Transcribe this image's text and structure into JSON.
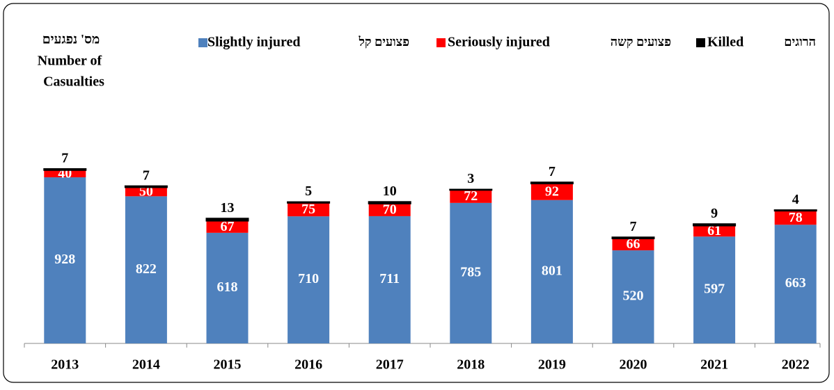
{
  "chart_data": {
    "type": "stacked_bar",
    "ylabel_lines": [
      "מס' נפגעים",
      "Number of",
      "Casualties"
    ],
    "categories": [
      "2013",
      "2014",
      "2015",
      "2016",
      "2017",
      "2018",
      "2019",
      "2020",
      "2021",
      "2022"
    ],
    "series": [
      {
        "name": "Slightly injured",
        "name_he": "פצועים קל",
        "color": "#4f81bd",
        "label_color": "#ffffff",
        "values": [
          928,
          822,
          618,
          710,
          711,
          785,
          801,
          520,
          597,
          663
        ]
      },
      {
        "name": "Seriously injured",
        "name_he": "פצועים קשה",
        "color": "#ff0000",
        "label_color": "#ffffff",
        "values": [
          40,
          50,
          67,
          75,
          70,
          72,
          92,
          66,
          61,
          78
        ]
      },
      {
        "name": "Killed",
        "name_he": "הרוגים",
        "color": "#000000",
        "label_color": "#000000",
        "values": [
          7,
          7,
          13,
          5,
          10,
          3,
          7,
          7,
          9,
          4
        ]
      }
    ],
    "ylim": [
      0,
      1600
    ]
  }
}
